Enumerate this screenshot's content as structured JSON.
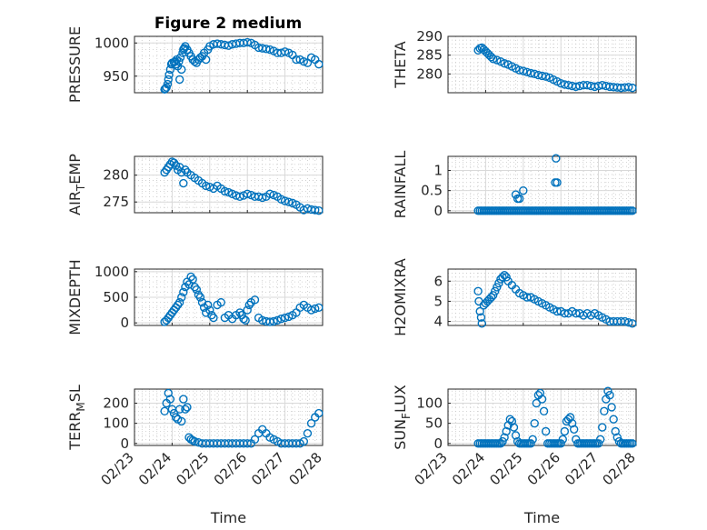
{
  "figure": {
    "title": "Figure 2 medium",
    "background": "#ffffff",
    "marker_color": "#0072bd"
  },
  "chart_data": [
    {
      "id": "pressure",
      "type": "scatter",
      "ylabel": "PRESSURE",
      "ylim": [
        925,
        1010
      ],
      "yticks": [
        950,
        1000
      ],
      "ytick_labels": [
        "950",
        "1000"
      ],
      "xlim": [
        0,
        5
      ],
      "xticks": [
        0,
        1,
        2,
        3,
        4,
        5
      ],
      "xtick_labels": [],
      "grid": true,
      "x": [
        0.8,
        0.82,
        0.85,
        0.88,
        0.9,
        0.92,
        0.95,
        0.98,
        1.0,
        1.05,
        1.08,
        1.1,
        1.12,
        1.15,
        1.18,
        1.2,
        1.22,
        1.25,
        1.28,
        1.3,
        1.32,
        1.35,
        1.4,
        1.45,
        1.5,
        1.55,
        1.6,
        1.65,
        1.7,
        1.75,
        1.8,
        1.85,
        1.9,
        1.95,
        2.0,
        2.1,
        2.2,
        2.3,
        2.4,
        2.5,
        2.6,
        2.7,
        2.8,
        2.9,
        3.0,
        3.1,
        3.2,
        3.3,
        3.4,
        3.5,
        3.6,
        3.7,
        3.8,
        3.9,
        4.0,
        4.1,
        4.2,
        4.3,
        4.4,
        4.5,
        4.6,
        4.7,
        4.8,
        4.9
      ],
      "y": [
        930,
        931,
        933,
        938,
        945,
        952,
        960,
        968,
        970,
        971,
        972,
        968,
        975,
        965,
        972,
        945,
        978,
        960,
        985,
        990,
        992,
        995,
        990,
        985,
        980,
        975,
        972,
        970,
        975,
        978,
        980,
        985,
        975,
        990,
        995,
        998,
        999,
        998,
        997,
        996,
        998,
        999,
        1000,
        1000,
        1001,
        1000,
        997,
        993,
        992,
        991,
        990,
        988,
        985,
        985,
        987,
        985,
        982,
        975,
        975,
        972,
        970,
        978,
        975,
        968
      ]
    },
    {
      "id": "theta",
      "type": "scatter",
      "ylabel": "THETA",
      "ylim": [
        275,
        290
      ],
      "yticks": [
        280,
        285,
        290
      ],
      "ytick_labels": [
        "280",
        "285",
        "290"
      ],
      "xlim": [
        0,
        5
      ],
      "xticks": [
        0,
        1,
        2,
        3,
        4,
        5
      ],
      "xtick_labels": [],
      "grid": true,
      "x": [
        0.8,
        0.85,
        0.9,
        0.95,
        1.0,
        1.05,
        1.1,
        1.15,
        1.2,
        1.3,
        1.4,
        1.5,
        1.6,
        1.7,
        1.8,
        1.9,
        2.0,
        2.1,
        2.2,
        2.3,
        2.4,
        2.5,
        2.6,
        2.7,
        2.8,
        2.9,
        3.0,
        3.1,
        3.2,
        3.3,
        3.4,
        3.5,
        3.6,
        3.7,
        3.8,
        3.9,
        4.0,
        4.1,
        4.2,
        4.3,
        4.4,
        4.5,
        4.6,
        4.7,
        4.8,
        4.9
      ],
      "y": [
        286.3,
        286.8,
        287.0,
        286.5,
        286.0,
        285.5,
        285.0,
        284.5,
        284.0,
        283.7,
        283.3,
        282.8,
        282.5,
        282.0,
        281.5,
        281.0,
        280.8,
        280.5,
        280.2,
        280.0,
        279.7,
        279.5,
        279.3,
        279.0,
        278.5,
        278.0,
        277.5,
        277.2,
        277.0,
        276.8,
        276.6,
        276.8,
        277.0,
        277.0,
        276.8,
        276.6,
        276.8,
        277.0,
        276.8,
        276.6,
        276.5,
        276.4,
        276.3,
        276.4,
        276.5,
        276.3
      ]
    },
    {
      "id": "air_temp",
      "type": "scatter",
      "ylabel": "AIR_TEMP",
      "ylim": [
        273,
        283.5
      ],
      "yticks": [
        275,
        280
      ],
      "ytick_labels": [
        "275",
        "280"
      ],
      "xlim": [
        0,
        5
      ],
      "xticks": [
        0,
        1,
        2,
        3,
        4,
        5
      ],
      "xtick_labels": [],
      "grid": true,
      "x": [
        0.8,
        0.85,
        0.9,
        0.95,
        1.0,
        1.05,
        1.1,
        1.15,
        1.2,
        1.25,
        1.3,
        1.35,
        1.4,
        1.5,
        1.6,
        1.7,
        1.8,
        1.9,
        2.0,
        2.1,
        2.2,
        2.3,
        2.4,
        2.5,
        2.6,
        2.7,
        2.8,
        2.9,
        3.0,
        3.1,
        3.2,
        3.3,
        3.4,
        3.5,
        3.6,
        3.7,
        3.8,
        3.9,
        4.0,
        4.1,
        4.2,
        4.3,
        4.4,
        4.5,
        4.6,
        4.7,
        4.8,
        4.9
      ],
      "y": [
        280.5,
        281.0,
        281.5,
        282.0,
        282.5,
        282.3,
        281.8,
        281.0,
        281.5,
        280.5,
        278.5,
        281.0,
        280.5,
        280.0,
        279.5,
        279.0,
        278.5,
        278.0,
        277.8,
        277.5,
        278.0,
        277.5,
        277.0,
        276.8,
        276.5,
        276.2,
        276.0,
        276.2,
        276.5,
        276.3,
        276.0,
        276.0,
        275.8,
        276.0,
        276.5,
        276.3,
        276.0,
        275.5,
        275.2,
        275.0,
        274.8,
        274.5,
        274.0,
        273.5,
        273.8,
        273.6,
        273.5,
        273.4
      ]
    },
    {
      "id": "rainfall",
      "type": "scatter",
      "ylabel": "RAINFALL",
      "ylim": [
        -0.05,
        1.35
      ],
      "yticks": [
        0,
        0.5,
        1
      ],
      "ytick_labels": [
        "0",
        "0.5",
        "1"
      ],
      "xlim": [
        0,
        5
      ],
      "xticks": [
        0,
        1,
        2,
        3,
        4,
        5
      ],
      "xtick_labels": [],
      "grid": true,
      "x": [
        0.8,
        0.85,
        0.9,
        0.95,
        1.0,
        1.05,
        1.1,
        1.15,
        1.2,
        1.25,
        1.3,
        1.35,
        1.4,
        1.45,
        1.5,
        1.55,
        1.6,
        1.65,
        1.7,
        1.75,
        1.8,
        1.85,
        1.9,
        1.95,
        2.0,
        2.05,
        2.1,
        2.15,
        2.2,
        2.25,
        2.3,
        2.35,
        2.4,
        2.45,
        2.5,
        2.55,
        2.6,
        2.65,
        2.7,
        2.75,
        2.8,
        2.85,
        2.9,
        2.95,
        3.0,
        3.05,
        3.1,
        3.15,
        3.2,
        3.25,
        3.3,
        3.35,
        3.4,
        3.45,
        3.5,
        3.55,
        3.6,
        3.65,
        3.7,
        3.75,
        3.8,
        3.85,
        3.9,
        3.95,
        4.0,
        4.05,
        4.1,
        4.15,
        4.2,
        4.25,
        4.3,
        4.35,
        4.4,
        4.45,
        4.5,
        4.55,
        4.6,
        4.65,
        4.7,
        4.75,
        4.8,
        4.85,
        4.9,
        1.8,
        1.85,
        1.9,
        2.0,
        2.85,
        2.87,
        2.9
      ],
      "y": [
        0,
        0,
        0,
        0,
        0,
        0,
        0,
        0,
        0,
        0,
        0,
        0,
        0,
        0,
        0,
        0,
        0,
        0,
        0,
        0,
        0,
        0,
        0,
        0,
        0,
        0,
        0,
        0,
        0,
        0,
        0,
        0,
        0,
        0,
        0,
        0,
        0,
        0,
        0,
        0,
        0,
        0,
        0,
        0,
        0,
        0,
        0,
        0,
        0,
        0,
        0,
        0,
        0,
        0,
        0,
        0,
        0,
        0,
        0,
        0,
        0,
        0,
        0,
        0,
        0,
        0,
        0,
        0,
        0,
        0,
        0,
        0,
        0,
        0,
        0,
        0,
        0,
        0,
        0,
        0,
        0,
        0,
        0,
        0.4,
        0.3,
        0.3,
        0.5,
        0.7,
        1.3,
        0.7
      ]
    },
    {
      "id": "mixdepth",
      "type": "scatter",
      "ylabel": "MIXDEPTH",
      "ylim": [
        -50,
        1050
      ],
      "yticks": [
        0,
        500,
        1000
      ],
      "ytick_labels": [
        "0",
        "500",
        "1000"
      ],
      "xlim": [
        0,
        5
      ],
      "xticks": [
        0,
        1,
        2,
        3,
        4,
        5
      ],
      "xtick_labels": [],
      "grid": true,
      "x": [
        0.8,
        0.85,
        0.9,
        0.95,
        1.0,
        1.05,
        1.1,
        1.15,
        1.2,
        1.25,
        1.3,
        1.35,
        1.4,
        1.45,
        1.5,
        1.55,
        1.6,
        1.65,
        1.7,
        1.75,
        1.8,
        1.85,
        1.9,
        1.95,
        2.0,
        2.05,
        2.1,
        2.2,
        2.3,
        2.4,
        2.5,
        2.6,
        2.7,
        2.8,
        2.85,
        2.9,
        2.95,
        3.0,
        3.05,
        3.1,
        3.2,
        3.3,
        3.4,
        3.5,
        3.6,
        3.7,
        3.8,
        3.9,
        4.0,
        4.1,
        4.2,
        4.3,
        4.4,
        4.5,
        4.6,
        4.7,
        4.8,
        4.9
      ],
      "y": [
        20,
        50,
        100,
        150,
        200,
        250,
        300,
        350,
        400,
        500,
        600,
        700,
        800,
        750,
        900,
        850,
        700,
        650,
        550,
        500,
        400,
        300,
        200,
        350,
        250,
        150,
        100,
        350,
        400,
        100,
        150,
        80,
        150,
        200,
        150,
        80,
        50,
        250,
        350,
        400,
        450,
        100,
        50,
        30,
        20,
        30,
        50,
        80,
        100,
        120,
        150,
        200,
        300,
        350,
        300,
        250,
        280,
        300
      ]
    },
    {
      "id": "h2omixra",
      "type": "scatter",
      "ylabel": "H2OMIXRA",
      "ylim": [
        3.8,
        6.6
      ],
      "yticks": [
        4,
        5,
        6
      ],
      "ytick_labels": [
        "4",
        "5",
        "6"
      ],
      "xlim": [
        0,
        5
      ],
      "xticks": [
        0,
        1,
        2,
        3,
        4,
        5
      ],
      "xtick_labels": [],
      "grid": true,
      "x": [
        0.8,
        0.82,
        0.85,
        0.88,
        0.9,
        0.95,
        1.0,
        1.05,
        1.1,
        1.15,
        1.2,
        1.25,
        1.3,
        1.35,
        1.4,
        1.45,
        1.5,
        1.55,
        1.6,
        1.7,
        1.8,
        1.9,
        2.0,
        2.1,
        2.2,
        2.3,
        2.4,
        2.5,
        2.6,
        2.7,
        2.8,
        2.9,
        3.0,
        3.1,
        3.2,
        3.3,
        3.4,
        3.5,
        3.6,
        3.7,
        3.8,
        3.9,
        4.0,
        4.1,
        4.2,
        4.3,
        4.4,
        4.5,
        4.6,
        4.7,
        4.8,
        4.9
      ],
      "y": [
        5.5,
        5.0,
        4.5,
        4.2,
        3.9,
        4.8,
        4.9,
        5.0,
        5.1,
        5.2,
        5.3,
        5.5,
        5.7,
        5.9,
        6.1,
        6.2,
        6.3,
        6.2,
        6.0,
        5.8,
        5.6,
        5.4,
        5.3,
        5.2,
        5.2,
        5.1,
        5.0,
        4.9,
        4.8,
        4.7,
        4.6,
        4.5,
        4.5,
        4.4,
        4.4,
        4.5,
        4.4,
        4.4,
        4.3,
        4.4,
        4.3,
        4.4,
        4.3,
        4.2,
        4.1,
        4.0,
        4.0,
        4.0,
        4.0,
        4.0,
        3.95,
        3.9
      ]
    },
    {
      "id": "terr_msl",
      "type": "scatter",
      "ylabel": "TERR_MSL",
      "ylim": [
        -10,
        270
      ],
      "yticks": [
        0,
        100,
        200
      ],
      "ytick_labels": [
        "0",
        "100",
        "200"
      ],
      "xlim": [
        0,
        5
      ],
      "xticks": [
        0,
        1,
        2,
        3,
        4,
        5
      ],
      "xtick_labels": [
        "02/23",
        "02/24",
        "02/25",
        "02/26",
        "02/27",
        "02/28"
      ],
      "xlabel": "Time",
      "grid": true,
      "x": [
        0.8,
        0.85,
        0.9,
        0.95,
        1.0,
        1.05,
        1.1,
        1.15,
        1.2,
        1.25,
        1.3,
        1.35,
        1.4,
        1.45,
        1.5,
        1.55,
        1.6,
        1.7,
        1.8,
        1.9,
        2.0,
        2.1,
        2.2,
        2.3,
        2.4,
        2.5,
        2.6,
        2.7,
        2.8,
        2.9,
        3.0,
        3.1,
        3.2,
        3.3,
        3.4,
        3.5,
        3.6,
        3.7,
        3.8,
        3.9,
        4.0,
        4.1,
        4.2,
        4.3,
        4.4,
        4.5,
        4.6,
        4.7,
        4.8,
        4.9
      ],
      "y": [
        160,
        200,
        250,
        220,
        170,
        150,
        130,
        120,
        170,
        110,
        220,
        170,
        180,
        30,
        20,
        15,
        10,
        5,
        0,
        0,
        0,
        0,
        0,
        0,
        0,
        0,
        0,
        0,
        0,
        0,
        0,
        0,
        20,
        50,
        70,
        50,
        30,
        20,
        10,
        0,
        0,
        0,
        0,
        0,
        0,
        10,
        50,
        100,
        130,
        150
      ]
    },
    {
      "id": "sun_flux",
      "type": "scatter",
      "ylabel": "SUN_FLUX",
      "ylim": [
        -5,
        135
      ],
      "yticks": [
        0,
        50,
        100
      ],
      "ytick_labels": [
        "0",
        "50",
        "100"
      ],
      "xlim": [
        0,
        5
      ],
      "xticks": [
        0,
        1,
        2,
        3,
        4,
        5
      ],
      "xtick_labels": [
        "02/23",
        "02/24",
        "02/25",
        "02/26",
        "02/27",
        "02/28"
      ],
      "xlabel": "Time",
      "grid": true,
      "x": [
        0.8,
        0.85,
        0.9,
        0.95,
        1.0,
        1.05,
        1.1,
        1.15,
        1.2,
        1.25,
        1.3,
        1.35,
        1.4,
        1.45,
        1.5,
        1.55,
        1.6,
        1.65,
        1.7,
        1.75,
        1.8,
        1.85,
        1.9,
        1.95,
        2.0,
        2.05,
        2.1,
        2.15,
        2.2,
        2.25,
        2.3,
        2.35,
        2.4,
        2.45,
        2.5,
        2.55,
        2.6,
        2.65,
        2.7,
        2.75,
        2.8,
        2.85,
        2.9,
        2.95,
        3.0,
        3.05,
        3.1,
        3.15,
        3.2,
        3.25,
        3.3,
        3.35,
        3.4,
        3.45,
        3.5,
        3.55,
        3.6,
        3.65,
        3.7,
        3.75,
        3.8,
        3.85,
        3.9,
        3.95,
        4.0,
        4.05,
        4.1,
        4.15,
        4.2,
        4.25,
        4.3,
        4.35,
        4.4,
        4.45,
        4.5,
        4.55,
        4.6,
        4.65,
        4.7,
        4.75,
        4.8,
        4.85,
        4.9
      ],
      "y": [
        0,
        0,
        0,
        0,
        0,
        0,
        0,
        0,
        0,
        0,
        0,
        0,
        0,
        5,
        15,
        30,
        45,
        60,
        55,
        40,
        20,
        5,
        0,
        0,
        0,
        0,
        0,
        0,
        0,
        10,
        50,
        100,
        120,
        125,
        110,
        80,
        30,
        0,
        0,
        0,
        0,
        0,
        0,
        0,
        0,
        10,
        30,
        55,
        60,
        65,
        50,
        35,
        10,
        0,
        0,
        0,
        0,
        0,
        0,
        0,
        0,
        0,
        0,
        0,
        0,
        10,
        40,
        80,
        110,
        130,
        120,
        90,
        60,
        30,
        15,
        5,
        0,
        0,
        0,
        0,
        0,
        0,
        0
      ]
    }
  ]
}
